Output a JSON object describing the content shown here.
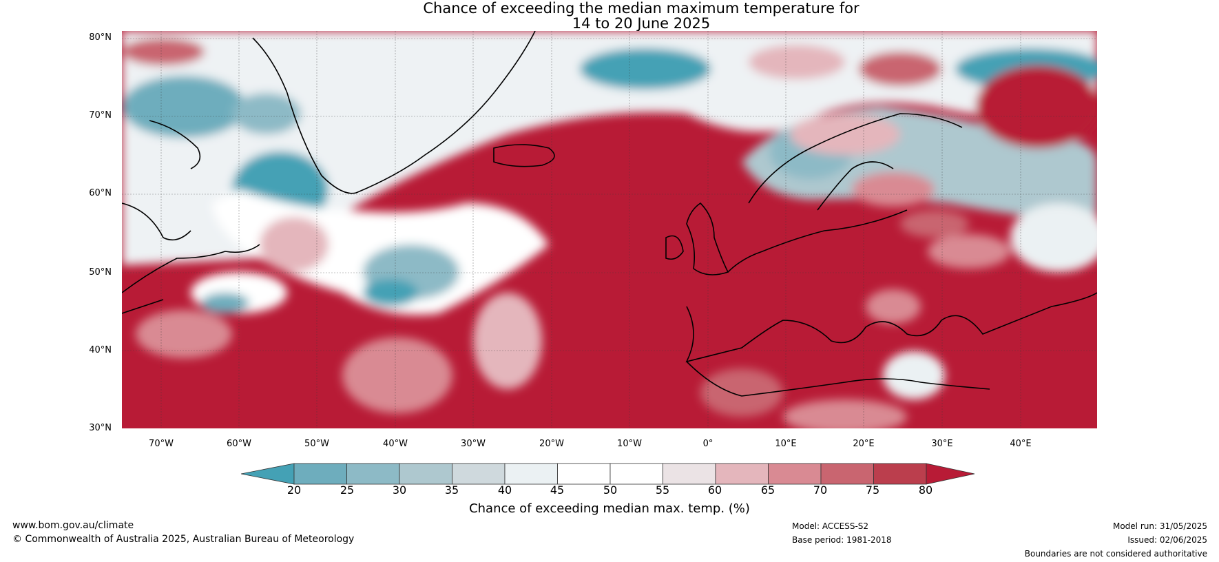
{
  "title": {
    "line1": "Chance of exceeding the median maximum temperature for",
    "line2": "14 to 20 June 2025"
  },
  "axes": {
    "lat_labels": [
      "80°N",
      "70°N",
      "60°N",
      "50°N",
      "40°N",
      "30°N"
    ],
    "lon_labels": [
      "70°W",
      "60°W",
      "50°W",
      "40°W",
      "30°W",
      "20°W",
      "10°W",
      "0°",
      "10°E",
      "20°E",
      "30°E",
      "40°E"
    ]
  },
  "colorbar": {
    "ticks": [
      "20",
      "25",
      "30",
      "35",
      "40",
      "45",
      "50",
      "55",
      "60",
      "65",
      "70",
      "75",
      "80"
    ],
    "colors": [
      "#44a1b5",
      "#6eadbd",
      "#8dbac6",
      "#aec8cf",
      "#cfd9dd",
      "#ebf1f3",
      "#ffffff",
      "#ffffff",
      "#ebe3e5",
      "#e4b6bc",
      "#d98a93",
      "#c96570",
      "#bb3e4d",
      "#b81b36"
    ],
    "label": "Chance of exceeding median max. temp. (%)"
  },
  "map": {
    "warm_color": "#b81b36",
    "cool_color": "#44a1b5"
  },
  "footer": {
    "website": "www.bom.gov.au/climate",
    "copyright": "© Commonwealth of Australia 2025, Australian Bureau of Meteorology",
    "model": "Model: ACCESS-S2",
    "base_period": "Base period: 1981-2018",
    "model_run": "Model run: 31/05/2025",
    "issued": "Issued: 02/06/2025",
    "disclaimer": "Boundaries are not considered authoritative"
  }
}
